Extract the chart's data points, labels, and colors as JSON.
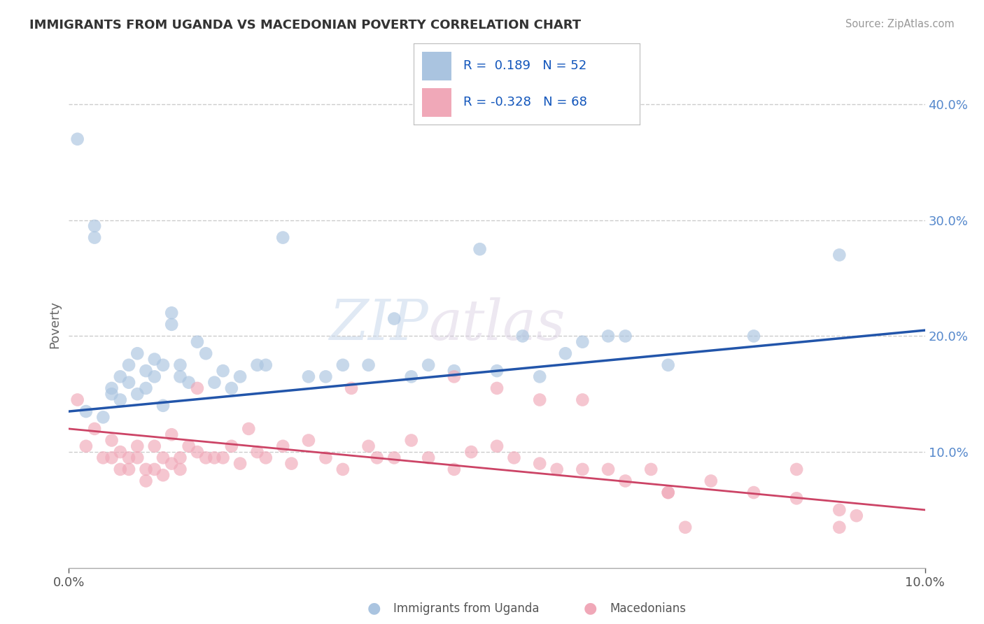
{
  "title": "IMMIGRANTS FROM UGANDA VS MACEDONIAN POVERTY CORRELATION CHART",
  "source": "Source: ZipAtlas.com",
  "ylabel": "Poverty",
  "watermark_zip": "ZIP",
  "watermark_atlas": "atlas",
  "legend_blue_r": " 0.189",
  "legend_blue_n": "52",
  "legend_pink_r": "-0.328",
  "legend_pink_n": "68",
  "blue_color": "#aac4e0",
  "pink_color": "#f0a8b8",
  "blue_line_color": "#2255aa",
  "pink_line_color": "#cc4466",
  "bg_color": "#ffffff",
  "grid_color": "#cccccc",
  "xlim": [
    0.0,
    0.1
  ],
  "ylim": [
    0.0,
    0.42
  ],
  "yticks": [
    0.1,
    0.2,
    0.3,
    0.4
  ],
  "ytick_labels": [
    "10.0%",
    "20.0%",
    "30.0%",
    "40.0%"
  ],
  "blue_scatter_x": [
    0.001,
    0.002,
    0.003,
    0.003,
    0.004,
    0.005,
    0.005,
    0.006,
    0.006,
    0.007,
    0.007,
    0.008,
    0.008,
    0.009,
    0.009,
    0.01,
    0.01,
    0.011,
    0.011,
    0.012,
    0.012,
    0.013,
    0.013,
    0.014,
    0.015,
    0.016,
    0.017,
    0.018,
    0.019,
    0.02,
    0.022,
    0.023,
    0.025,
    0.028,
    0.03,
    0.032,
    0.035,
    0.038,
    0.04,
    0.042,
    0.045,
    0.048,
    0.05,
    0.053,
    0.055,
    0.058,
    0.06,
    0.063,
    0.065,
    0.07,
    0.08,
    0.09
  ],
  "blue_scatter_y": [
    0.37,
    0.135,
    0.295,
    0.285,
    0.13,
    0.15,
    0.155,
    0.145,
    0.165,
    0.175,
    0.16,
    0.15,
    0.185,
    0.17,
    0.155,
    0.18,
    0.165,
    0.14,
    0.175,
    0.21,
    0.22,
    0.175,
    0.165,
    0.16,
    0.195,
    0.185,
    0.16,
    0.17,
    0.155,
    0.165,
    0.175,
    0.175,
    0.285,
    0.165,
    0.165,
    0.175,
    0.175,
    0.215,
    0.165,
    0.175,
    0.17,
    0.275,
    0.17,
    0.2,
    0.165,
    0.185,
    0.195,
    0.2,
    0.2,
    0.175,
    0.2,
    0.27
  ],
  "pink_scatter_x": [
    0.001,
    0.002,
    0.003,
    0.004,
    0.005,
    0.005,
    0.006,
    0.006,
    0.007,
    0.007,
    0.008,
    0.008,
    0.009,
    0.009,
    0.01,
    0.01,
    0.011,
    0.011,
    0.012,
    0.012,
    0.013,
    0.013,
    0.014,
    0.015,
    0.015,
    0.016,
    0.017,
    0.018,
    0.019,
    0.02,
    0.021,
    0.022,
    0.023,
    0.025,
    0.026,
    0.028,
    0.03,
    0.032,
    0.033,
    0.035,
    0.036,
    0.038,
    0.04,
    0.042,
    0.045,
    0.045,
    0.047,
    0.05,
    0.05,
    0.052,
    0.055,
    0.055,
    0.057,
    0.06,
    0.06,
    0.063,
    0.065,
    0.068,
    0.07,
    0.07,
    0.072,
    0.075,
    0.08,
    0.085,
    0.085,
    0.09,
    0.09,
    0.092
  ],
  "pink_scatter_y": [
    0.145,
    0.105,
    0.12,
    0.095,
    0.095,
    0.11,
    0.085,
    0.1,
    0.095,
    0.085,
    0.105,
    0.095,
    0.075,
    0.085,
    0.105,
    0.085,
    0.095,
    0.08,
    0.115,
    0.09,
    0.095,
    0.085,
    0.105,
    0.1,
    0.155,
    0.095,
    0.095,
    0.095,
    0.105,
    0.09,
    0.12,
    0.1,
    0.095,
    0.105,
    0.09,
    0.11,
    0.095,
    0.085,
    0.155,
    0.105,
    0.095,
    0.095,
    0.11,
    0.095,
    0.085,
    0.165,
    0.1,
    0.105,
    0.155,
    0.095,
    0.09,
    0.145,
    0.085,
    0.085,
    0.145,
    0.085,
    0.075,
    0.085,
    0.065,
    0.065,
    0.035,
    0.075,
    0.065,
    0.06,
    0.085,
    0.05,
    0.035,
    0.045
  ]
}
